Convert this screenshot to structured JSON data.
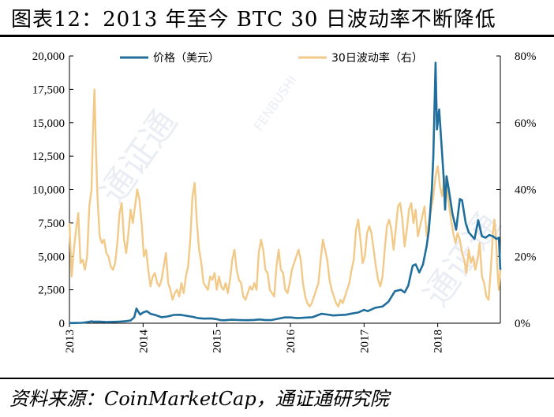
{
  "title": "图表12：2013 年至今 BTC 30 日波动率不断降低",
  "source": "资料来源：CoinMarketCap，通证通研究院",
  "chart_data": {
    "type": "line",
    "x_ticks": [
      "2013",
      "2014",
      "2015",
      "2016",
      "2017",
      "2018"
    ],
    "xlim": [
      2013.0,
      2018.85
    ],
    "y_left": {
      "ylim": [
        0,
        20000
      ],
      "ticks": [
        "0",
        "2,500",
        "5,000",
        "7,500",
        "10,000",
        "12,500",
        "15,000",
        "17,500",
        "20,000"
      ]
    },
    "y_right": {
      "ylim": [
        0,
        0.8
      ],
      "ticks": [
        "0%",
        "20%",
        "40%",
        "60%",
        "80%"
      ]
    },
    "grid": false,
    "legend_position": "top",
    "series": [
      {
        "name": "价格（美元）",
        "axis": "left",
        "color": "#1f6e9c",
        "points": [
          [
            2013.0,
            13
          ],
          [
            2013.08,
            15
          ],
          [
            2013.17,
            30
          ],
          [
            2013.25,
            90
          ],
          [
            2013.3,
            140
          ],
          [
            2013.33,
            110
          ],
          [
            2013.42,
            120
          ],
          [
            2013.5,
            90
          ],
          [
            2013.58,
            100
          ],
          [
            2013.67,
            120
          ],
          [
            2013.75,
            140
          ],
          [
            2013.83,
            200
          ],
          [
            2013.88,
            450
          ],
          [
            2013.91,
            1100
          ],
          [
            2013.93,
            900
          ],
          [
            2013.96,
            650
          ],
          [
            2014.0,
            800
          ],
          [
            2014.05,
            900
          ],
          [
            2014.1,
            700
          ],
          [
            2014.17,
            600
          ],
          [
            2014.25,
            450
          ],
          [
            2014.33,
            500
          ],
          [
            2014.42,
            620
          ],
          [
            2014.5,
            630
          ],
          [
            2014.58,
            560
          ],
          [
            2014.67,
            480
          ],
          [
            2014.75,
            380
          ],
          [
            2014.83,
            340
          ],
          [
            2014.92,
            360
          ],
          [
            2015.0,
            300
          ],
          [
            2015.05,
            230
          ],
          [
            2015.1,
            220
          ],
          [
            2015.2,
            260
          ],
          [
            2015.3,
            235
          ],
          [
            2015.4,
            225
          ],
          [
            2015.5,
            240
          ],
          [
            2015.58,
            280
          ],
          [
            2015.67,
            230
          ],
          [
            2015.75,
            240
          ],
          [
            2015.83,
            330
          ],
          [
            2015.92,
            430
          ],
          [
            2016.0,
            430
          ],
          [
            2016.1,
            380
          ],
          [
            2016.2,
            420
          ],
          [
            2016.3,
            450
          ],
          [
            2016.42,
            700
          ],
          [
            2016.5,
            650
          ],
          [
            2016.58,
            580
          ],
          [
            2016.67,
            610
          ],
          [
            2016.75,
            630
          ],
          [
            2016.83,
            720
          ],
          [
            2016.92,
            800
          ],
          [
            2017.0,
            1000
          ],
          [
            2017.05,
            900
          ],
          [
            2017.15,
            1150
          ],
          [
            2017.25,
            1250
          ],
          [
            2017.33,
            1600
          ],
          [
            2017.42,
            2400
          ],
          [
            2017.5,
            2500
          ],
          [
            2017.55,
            2300
          ],
          [
            2017.6,
            2800
          ],
          [
            2017.66,
            4300
          ],
          [
            2017.7,
            4400
          ],
          [
            2017.75,
            3800
          ],
          [
            2017.8,
            4400
          ],
          [
            2017.85,
            5800
          ],
          [
            2017.88,
            7000
          ],
          [
            2017.92,
            10000
          ],
          [
            2017.94,
            12500
          ],
          [
            2017.96,
            17000
          ],
          [
            2017.97,
            19500
          ],
          [
            2017.99,
            14500
          ],
          [
            2018.02,
            16000
          ],
          [
            2018.05,
            13500
          ],
          [
            2018.08,
            11000
          ],
          [
            2018.1,
            8500
          ],
          [
            2018.12,
            11000
          ],
          [
            2018.15,
            10000
          ],
          [
            2018.2,
            8200
          ],
          [
            2018.25,
            7000
          ],
          [
            2018.3,
            9300
          ],
          [
            2018.33,
            9200
          ],
          [
            2018.38,
            7500
          ],
          [
            2018.42,
            6800
          ],
          [
            2018.5,
            6300
          ],
          [
            2018.55,
            7700
          ],
          [
            2018.6,
            6500
          ],
          [
            2018.65,
            6400
          ],
          [
            2018.7,
            6600
          ],
          [
            2018.75,
            6500
          ],
          [
            2018.8,
            6300
          ],
          [
            2018.83,
            6400
          ],
          [
            2018.85,
            4000
          ]
        ]
      },
      {
        "name": "30日波动率（右）",
        "axis": "right",
        "color": "#f2c986",
        "points": [
          [
            2013.0,
            0.3
          ],
          [
            2013.03,
            0.14
          ],
          [
            2013.06,
            0.22
          ],
          [
            2013.09,
            0.28
          ],
          [
            2013.12,
            0.33
          ],
          [
            2013.15,
            0.18
          ],
          [
            2013.18,
            0.19
          ],
          [
            2013.21,
            0.16
          ],
          [
            2013.24,
            0.2
          ],
          [
            2013.27,
            0.35
          ],
          [
            2013.3,
            0.4
          ],
          [
            2013.32,
            0.58
          ],
          [
            2013.34,
            0.7
          ],
          [
            2013.36,
            0.52
          ],
          [
            2013.38,
            0.38
          ],
          [
            2013.41,
            0.26
          ],
          [
            2013.44,
            0.24
          ],
          [
            2013.47,
            0.25
          ],
          [
            2013.5,
            0.21
          ],
          [
            2013.53,
            0.2
          ],
          [
            2013.56,
            0.17
          ],
          [
            2013.59,
            0.16
          ],
          [
            2013.62,
            0.18
          ],
          [
            2013.65,
            0.24
          ],
          [
            2013.68,
            0.33
          ],
          [
            2013.71,
            0.36
          ],
          [
            2013.74,
            0.25
          ],
          [
            2013.77,
            0.21
          ],
          [
            2013.8,
            0.27
          ],
          [
            2013.83,
            0.34
          ],
          [
            2013.86,
            0.3
          ],
          [
            2013.89,
            0.35
          ],
          [
            2013.92,
            0.4
          ],
          [
            2013.95,
            0.37
          ],
          [
            2013.98,
            0.3
          ],
          [
            2014.01,
            0.2
          ],
          [
            2014.04,
            0.22
          ],
          [
            2014.07,
            0.16
          ],
          [
            2014.1,
            0.11
          ],
          [
            2014.13,
            0.14
          ],
          [
            2014.16,
            0.15
          ],
          [
            2014.19,
            0.12
          ],
          [
            2014.22,
            0.11
          ],
          [
            2014.25,
            0.13
          ],
          [
            2014.28,
            0.17
          ],
          [
            2014.31,
            0.21
          ],
          [
            2014.34,
            0.12
          ],
          [
            2014.37,
            0.1
          ],
          [
            2014.4,
            0.07
          ],
          [
            2014.43,
            0.09
          ],
          [
            2014.46,
            0.1
          ],
          [
            2014.49,
            0.08
          ],
          [
            2014.52,
            0.12
          ],
          [
            2014.55,
            0.09
          ],
          [
            2014.58,
            0.14
          ],
          [
            2014.61,
            0.17
          ],
          [
            2014.64,
            0.25
          ],
          [
            2014.67,
            0.38
          ],
          [
            2014.7,
            0.42
          ],
          [
            2014.73,
            0.3
          ],
          [
            2014.76,
            0.22
          ],
          [
            2014.79,
            0.18
          ],
          [
            2014.82,
            0.12
          ],
          [
            2014.85,
            0.11
          ],
          [
            2014.88,
            0.1
          ],
          [
            2014.91,
            0.14
          ],
          [
            2014.94,
            0.13
          ],
          [
            2014.97,
            0.15
          ],
          [
            2015.0,
            0.1
          ],
          [
            2015.03,
            0.14
          ],
          [
            2015.06,
            0.11
          ],
          [
            2015.09,
            0.1
          ],
          [
            2015.12,
            0.12
          ],
          [
            2015.15,
            0.09
          ],
          [
            2015.18,
            0.13
          ],
          [
            2015.21,
            0.19
          ],
          [
            2015.24,
            0.22
          ],
          [
            2015.27,
            0.16
          ],
          [
            2015.3,
            0.13
          ],
          [
            2015.33,
            0.12
          ],
          [
            2015.36,
            0.08
          ],
          [
            2015.39,
            0.07
          ],
          [
            2015.42,
            0.09
          ],
          [
            2015.45,
            0.11
          ],
          [
            2015.48,
            0.1
          ],
          [
            2015.51,
            0.12
          ],
          [
            2015.54,
            0.1
          ],
          [
            2015.57,
            0.21
          ],
          [
            2015.6,
            0.25
          ],
          [
            2015.63,
            0.22
          ],
          [
            2015.66,
            0.16
          ],
          [
            2015.69,
            0.15
          ],
          [
            2015.72,
            0.1
          ],
          [
            2015.75,
            0.09
          ],
          [
            2015.78,
            0.08
          ],
          [
            2015.81,
            0.17
          ],
          [
            2015.84,
            0.22
          ],
          [
            2015.87,
            0.16
          ],
          [
            2015.9,
            0.15
          ],
          [
            2015.93,
            0.1
          ],
          [
            2015.96,
            0.09
          ],
          [
            2015.99,
            0.12
          ],
          [
            2016.02,
            0.16
          ],
          [
            2016.05,
            0.18
          ],
          [
            2016.08,
            0.2
          ],
          [
            2016.11,
            0.22
          ],
          [
            2016.14,
            0.19
          ],
          [
            2016.17,
            0.12
          ],
          [
            2016.2,
            0.08
          ],
          [
            2016.23,
            0.06
          ],
          [
            2016.26,
            0.05
          ],
          [
            2016.29,
            0.06
          ],
          [
            2016.32,
            0.08
          ],
          [
            2016.35,
            0.1
          ],
          [
            2016.38,
            0.12
          ],
          [
            2016.41,
            0.19
          ],
          [
            2016.44,
            0.25
          ],
          [
            2016.47,
            0.22
          ],
          [
            2016.5,
            0.19
          ],
          [
            2016.53,
            0.13
          ],
          [
            2016.56,
            0.1
          ],
          [
            2016.59,
            0.08
          ],
          [
            2016.62,
            0.06
          ],
          [
            2016.65,
            0.05
          ],
          [
            2016.68,
            0.07
          ],
          [
            2016.71,
            0.06
          ],
          [
            2016.74,
            0.08
          ],
          [
            2016.77,
            0.1
          ],
          [
            2016.8,
            0.12
          ],
          [
            2016.83,
            0.16
          ],
          [
            2016.86,
            0.19
          ],
          [
            2016.89,
            0.28
          ],
          [
            2016.92,
            0.31
          ],
          [
            2016.95,
            0.25
          ],
          [
            2016.98,
            0.18
          ],
          [
            2017.01,
            0.2
          ],
          [
            2017.04,
            0.27
          ],
          [
            2017.07,
            0.29
          ],
          [
            2017.1,
            0.27
          ],
          [
            2017.13,
            0.22
          ],
          [
            2017.16,
            0.17
          ],
          [
            2017.19,
            0.13
          ],
          [
            2017.22,
            0.11
          ],
          [
            2017.25,
            0.14
          ],
          [
            2017.28,
            0.22
          ],
          [
            2017.31,
            0.29
          ],
          [
            2017.34,
            0.31
          ],
          [
            2017.37,
            0.28
          ],
          [
            2017.4,
            0.22
          ],
          [
            2017.43,
            0.28
          ],
          [
            2017.46,
            0.35
          ],
          [
            2017.49,
            0.36
          ],
          [
            2017.52,
            0.31
          ],
          [
            2017.55,
            0.23
          ],
          [
            2017.58,
            0.28
          ],
          [
            2017.61,
            0.34
          ],
          [
            2017.64,
            0.36
          ],
          [
            2017.67,
            0.3
          ],
          [
            2017.7,
            0.34
          ],
          [
            2017.73,
            0.26
          ],
          [
            2017.76,
            0.29
          ],
          [
            2017.79,
            0.32
          ],
          [
            2017.82,
            0.35
          ],
          [
            2017.85,
            0.26
          ],
          [
            2017.88,
            0.3
          ],
          [
            2017.91,
            0.34
          ],
          [
            2017.94,
            0.38
          ],
          [
            2017.97,
            0.44
          ],
          [
            2018.0,
            0.47
          ],
          [
            2018.03,
            0.41
          ],
          [
            2018.06,
            0.38
          ],
          [
            2018.09,
            0.44
          ],
          [
            2018.12,
            0.4
          ],
          [
            2018.15,
            0.36
          ],
          [
            2018.18,
            0.31
          ],
          [
            2018.21,
            0.27
          ],
          [
            2018.24,
            0.24
          ],
          [
            2018.27,
            0.27
          ],
          [
            2018.3,
            0.25
          ],
          [
            2018.33,
            0.21
          ],
          [
            2018.36,
            0.19
          ],
          [
            2018.39,
            0.15
          ],
          [
            2018.42,
            0.22
          ],
          [
            2018.45,
            0.18
          ],
          [
            2018.48,
            0.2
          ],
          [
            2018.51,
            0.16
          ],
          [
            2018.54,
            0.19
          ],
          [
            2018.57,
            0.24
          ],
          [
            2018.6,
            0.14
          ],
          [
            2018.63,
            0.12
          ],
          [
            2018.66,
            0.08
          ],
          [
            2018.69,
            0.07
          ],
          [
            2018.72,
            0.16
          ],
          [
            2018.75,
            0.27
          ],
          [
            2018.77,
            0.31
          ],
          [
            2018.79,
            0.26
          ],
          [
            2018.81,
            0.16
          ],
          [
            2018.83,
            0.1
          ],
          [
            2018.85,
            0.16
          ]
        ]
      }
    ]
  },
  "watermark": {
    "text": "通证通",
    "latin": "FENBUSHI"
  }
}
